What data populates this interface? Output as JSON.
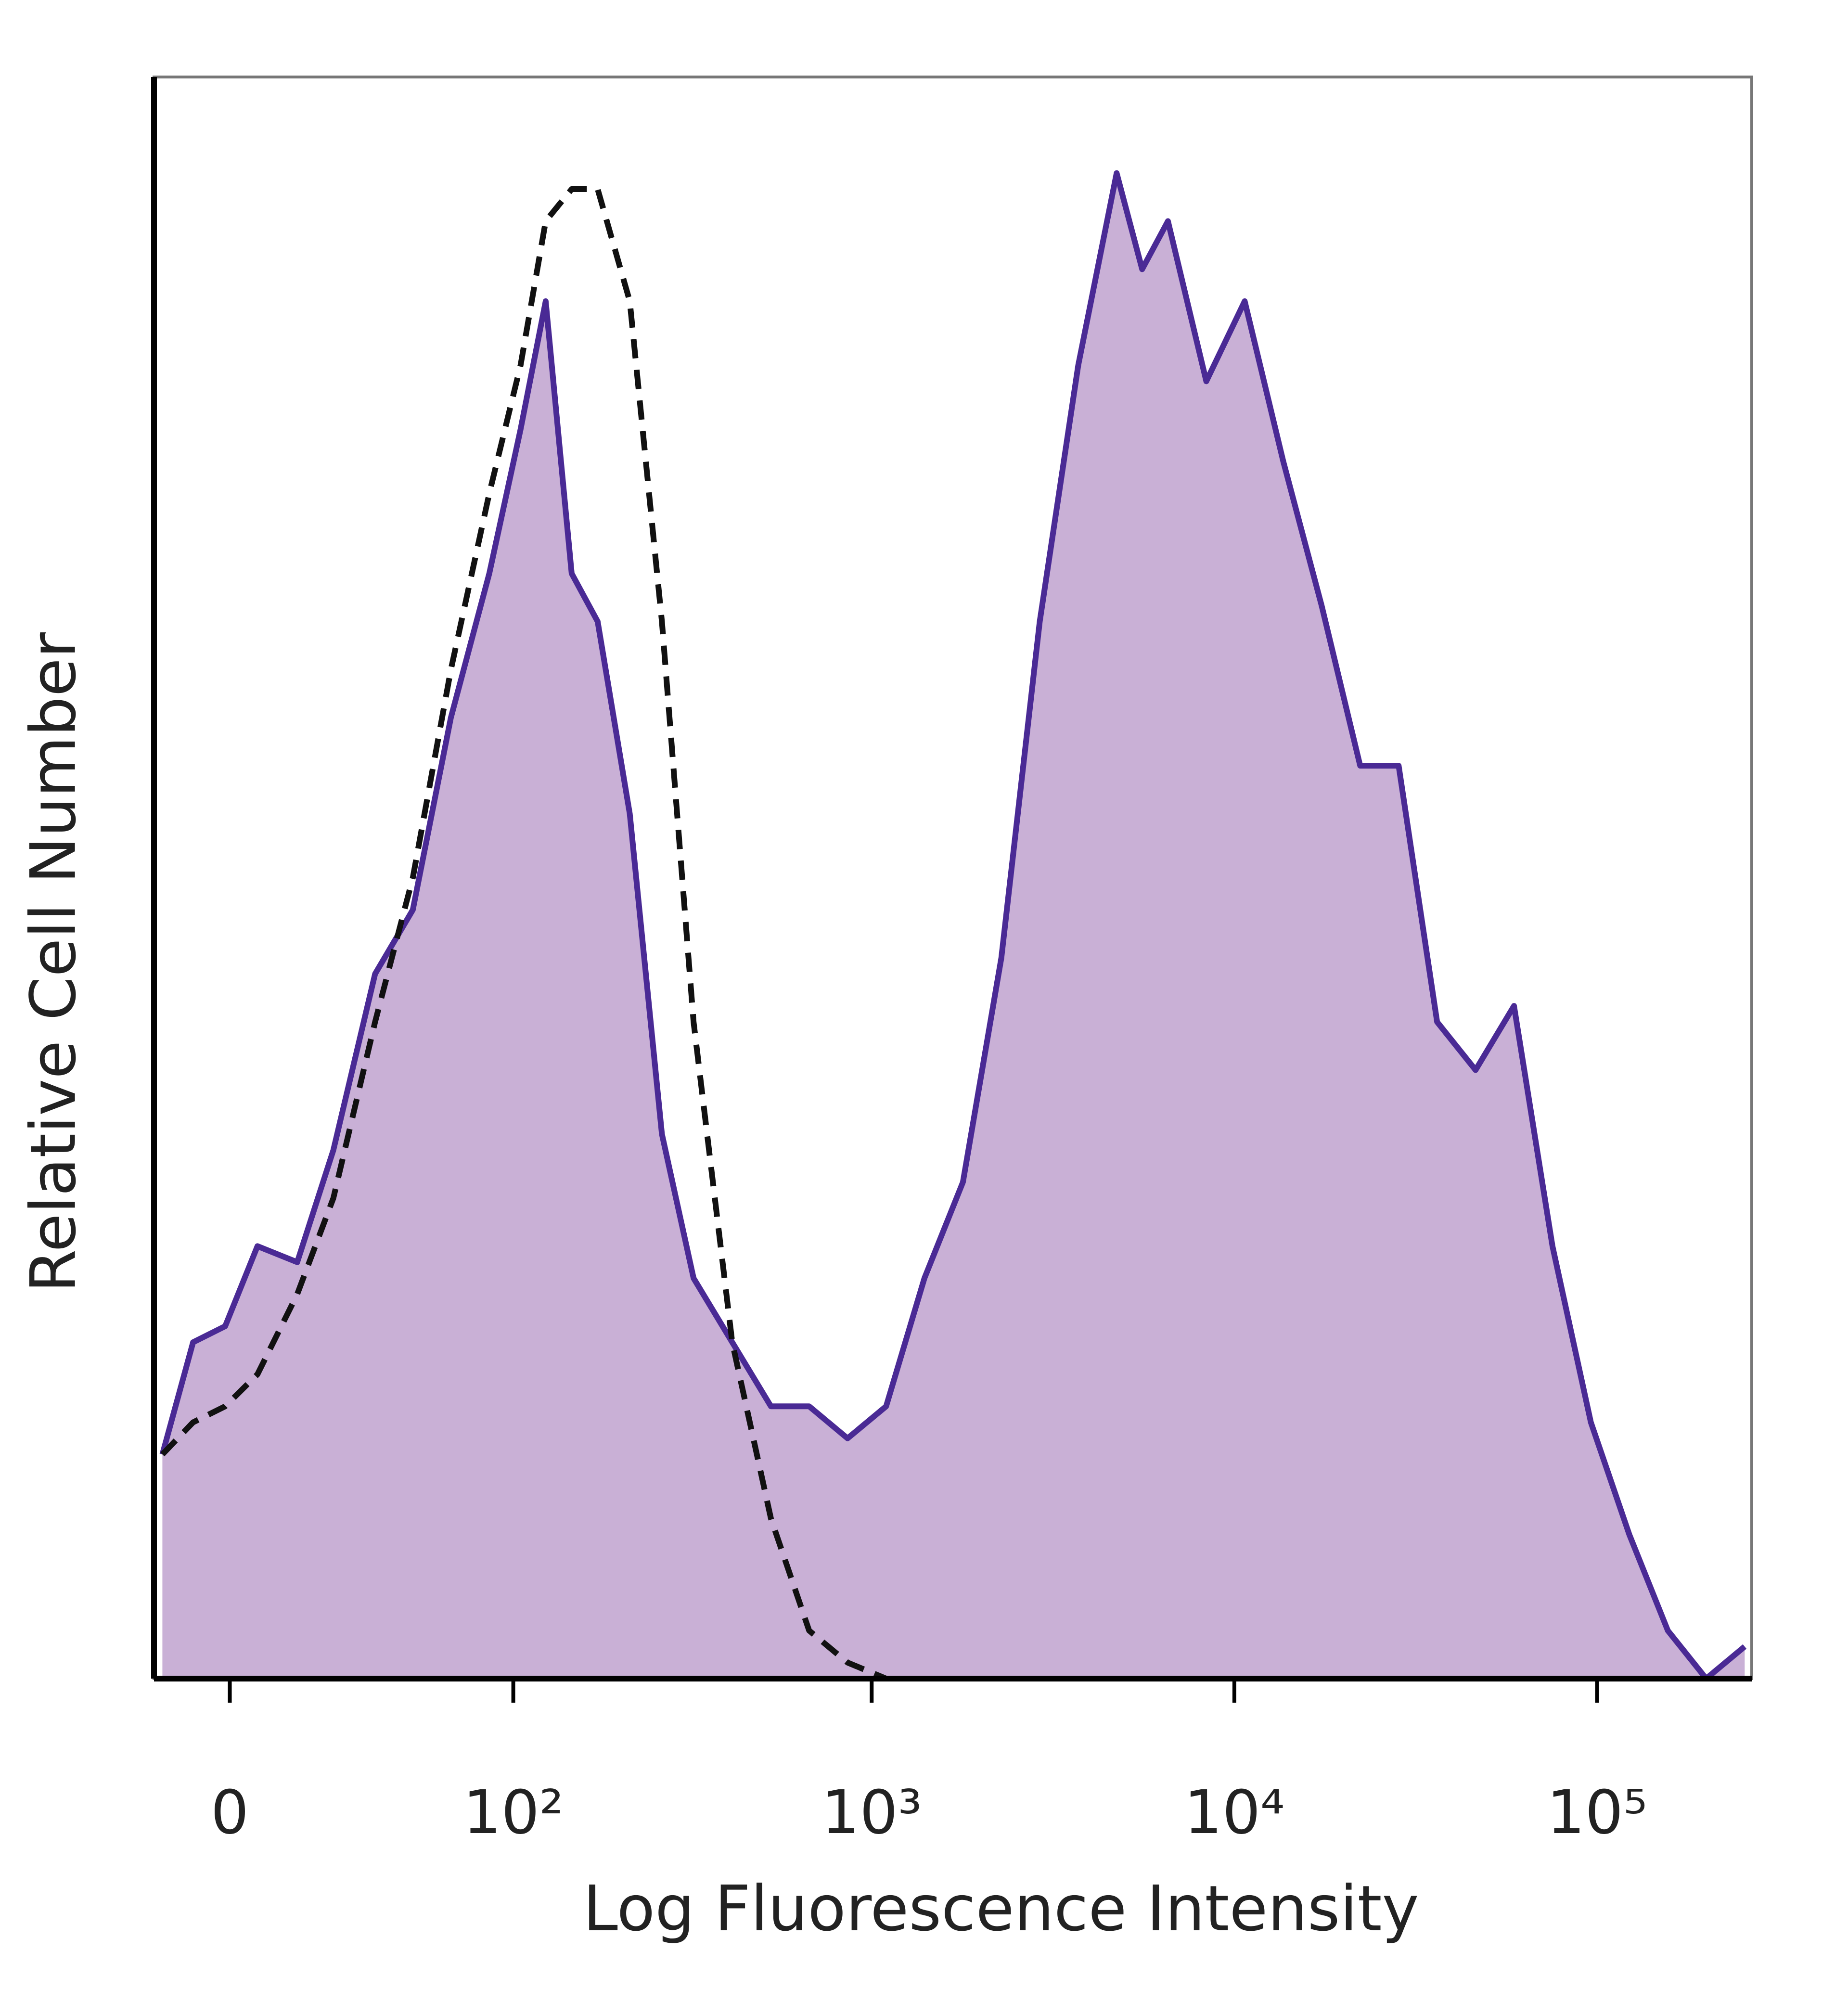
{
  "chart_data": {
    "type": "histogram-line",
    "x_label": "Log Fluorescence Intensity",
    "y_label": "Relative Cell Number",
    "x_scale": "biexponential",
    "xlim": [
      -17,
      267000
    ],
    "ylim": [
      0,
      100
    ],
    "xticks": [
      0,
      {
        "value": 100,
        "label": "10²"
      },
      {
        "value": 1000,
        "label": "10³"
      },
      {
        "value": 10000,
        "label": "10⁴"
      },
      {
        "value": 100000,
        "label": "10⁵"
      }
    ],
    "x": [
      -15,
      -8,
      -1,
      6,
      15,
      24,
      36,
      49,
      65,
      85,
      105,
      124,
      147,
      174,
      214,
      263,
      322,
      412,
      527,
      672,
      858,
      1096,
      1398,
      1785,
      2278,
      2907,
      3712,
      4737,
      5570,
      6560,
      8370,
      10680,
      13640,
      17400,
      22230,
      28380,
      36230,
      46240,
      59030,
      75340,
      96150,
      122700,
      156700,
      199900,
      255300
    ],
    "series": [
      {
        "color": "#4a2a95",
        "fill": "#c9b0d6",
        "style": "solid",
        "values": [
          14,
          21,
          22,
          27,
          26,
          33,
          44,
          48,
          60,
          69,
          78,
          86,
          69,
          66,
          54,
          34,
          25,
          21,
          17,
          17,
          15,
          17,
          25,
          31,
          45,
          66,
          82,
          94,
          88,
          91,
          81,
          86,
          76,
          67,
          57,
          57,
          41,
          38,
          42,
          27,
          16,
          9,
          3,
          0,
          2
        ]
      },
      {
        "color": "#111111",
        "style": "dashed",
        "values": [
          14,
          16,
          17,
          19,
          24,
          30,
          41,
          50,
          63,
          74,
          82,
          91,
          93,
          93,
          86,
          66,
          41,
          21,
          10,
          3,
          1,
          0,
          0,
          0,
          0,
          0,
          0,
          0,
          0,
          0,
          0,
          0,
          0,
          0,
          0,
          0,
          0,
          0,
          0,
          0,
          0,
          0,
          0,
          0,
          0
        ]
      }
    ]
  }
}
